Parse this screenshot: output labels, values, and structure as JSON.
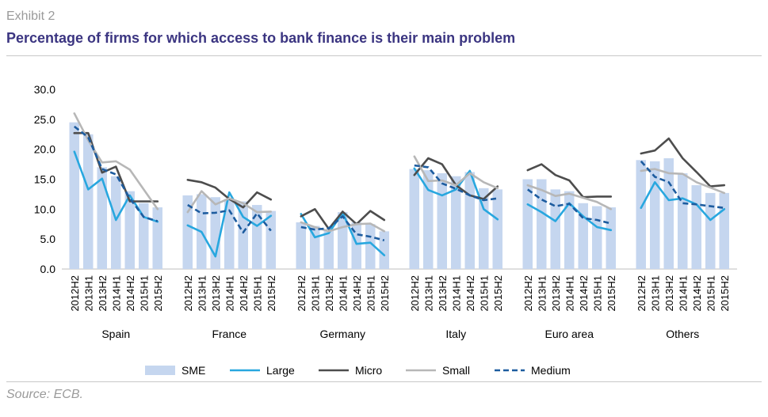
{
  "header": {
    "exhibit_label": "Exhibit 2",
    "title": "Percentage of firms for which access to bank finance is their main problem"
  },
  "footer": {
    "source": "Source: ECB."
  },
  "colors": {
    "SME": "#c5d6ef",
    "Large": "#28a7df",
    "Micro": "#4d4d4d",
    "Small": "#b7b7b7",
    "Medium": "#1d5c9f"
  },
  "chart_data": {
    "type": "bar",
    "title": "Percentage of firms for which access to bank finance is their main problem",
    "ylim": [
      0,
      30
    ],
    "yticks": [
      "0.0",
      "5.0",
      "10.0",
      "15.0",
      "20.0",
      "25.0",
      "30.0"
    ],
    "periods": [
      "2012H2",
      "2013H1",
      "2013H2",
      "2014H1",
      "2014H2",
      "2015H1",
      "2015H2"
    ],
    "groups": [
      "Spain",
      "France",
      "Germany",
      "Italy",
      "Euro area",
      "Others"
    ],
    "legend": [
      "SME",
      "Large",
      "Micro",
      "Small",
      "Medium"
    ],
    "legend_position": "bottom",
    "series": [
      {
        "name": "SME",
        "kind": "bar",
        "data": [
          [
            24.5,
            22.5,
            17.0,
            15.5,
            13.0,
            11.0,
            10.3
          ],
          [
            12.3,
            12.5,
            12.0,
            11.7,
            11.3,
            10.7,
            9.7
          ],
          [
            7.8,
            7.2,
            6.5,
            9.5,
            7.8,
            7.5,
            6.3
          ],
          [
            16.7,
            16.5,
            16.0,
            15.5,
            16.2,
            13.5,
            13.3
          ],
          [
            15.0,
            15.0,
            13.3,
            13.0,
            11.0,
            10.5,
            10.3
          ],
          [
            18.2,
            18.0,
            18.5,
            16.0,
            14.0,
            12.7,
            12.7
          ]
        ]
      },
      {
        "name": "Large",
        "kind": "line",
        "data": [
          [
            19.6,
            13.3,
            15.1,
            8.2,
            12.3,
            8.7,
            7.9
          ],
          [
            7.3,
            6.2,
            2.1,
            12.8,
            8.7,
            7.2,
            8.9
          ],
          [
            9.2,
            5.3,
            6.0,
            9.4,
            4.2,
            4.4,
            2.3
          ],
          [
            16.8,
            13.2,
            12.3,
            13.3,
            16.4,
            10.0,
            8.3
          ],
          [
            10.8,
            9.5,
            8.0,
            11.0,
            8.8,
            7.0,
            6.5
          ],
          [
            10.2,
            14.5,
            11.5,
            11.8,
            10.8,
            8.2,
            10.0
          ]
        ]
      },
      {
        "name": "Micro",
        "kind": "line",
        "data": [
          [
            22.7,
            22.7,
            16.1,
            17.1,
            11.3,
            11.3,
            11.3
          ],
          [
            14.9,
            14.5,
            13.6,
            11.7,
            10.3,
            12.8,
            11.6
          ],
          [
            8.8,
            10.0,
            6.7,
            9.6,
            7.5,
            9.7,
            8.2
          ],
          [
            15.7,
            18.5,
            17.5,
            14.0,
            12.3,
            11.7,
            13.8
          ],
          [
            16.5,
            17.5,
            15.7,
            14.8,
            12.0,
            12.1,
            12.1
          ],
          [
            19.3,
            19.8,
            21.8,
            18.5,
            16.2,
            13.8,
            14.0
          ]
        ]
      },
      {
        "name": "Small",
        "kind": "line",
        "data": [
          [
            26.0,
            21.5,
            17.8,
            18.0,
            16.6,
            13.3,
            10.0
          ],
          [
            9.5,
            13.0,
            10.8,
            11.8,
            11.0,
            9.5,
            9.6
          ],
          [
            7.8,
            7.0,
            6.3,
            7.0,
            7.5,
            7.6,
            6.3
          ],
          [
            18.8,
            14.7,
            14.8,
            14.0,
            16.0,
            14.5,
            13.5
          ],
          [
            14.0,
            13.2,
            12.2,
            12.6,
            11.9,
            11.2,
            10.0
          ],
          [
            16.4,
            16.7,
            16.0,
            15.9,
            14.5,
            13.6,
            12.7
          ]
        ]
      },
      {
        "name": "Medium",
        "kind": "dashed-line",
        "data": [
          [
            23.8,
            22.0,
            16.7,
            15.8,
            11.8,
            8.7,
            8.0
          ],
          [
            10.7,
            9.3,
            9.4,
            9.8,
            6.1,
            9.3,
            6.4
          ],
          [
            7.0,
            6.6,
            6.8,
            8.8,
            5.8,
            5.4,
            4.8
          ],
          [
            17.3,
            17.0,
            14.3,
            13.4,
            12.3,
            11.5,
            11.8
          ],
          [
            13.3,
            11.6,
            10.5,
            10.9,
            8.5,
            8.2,
            7.6
          ],
          [
            18.0,
            15.4,
            14.5,
            11.0,
            10.8,
            10.5,
            10.2
          ]
        ]
      }
    ]
  }
}
